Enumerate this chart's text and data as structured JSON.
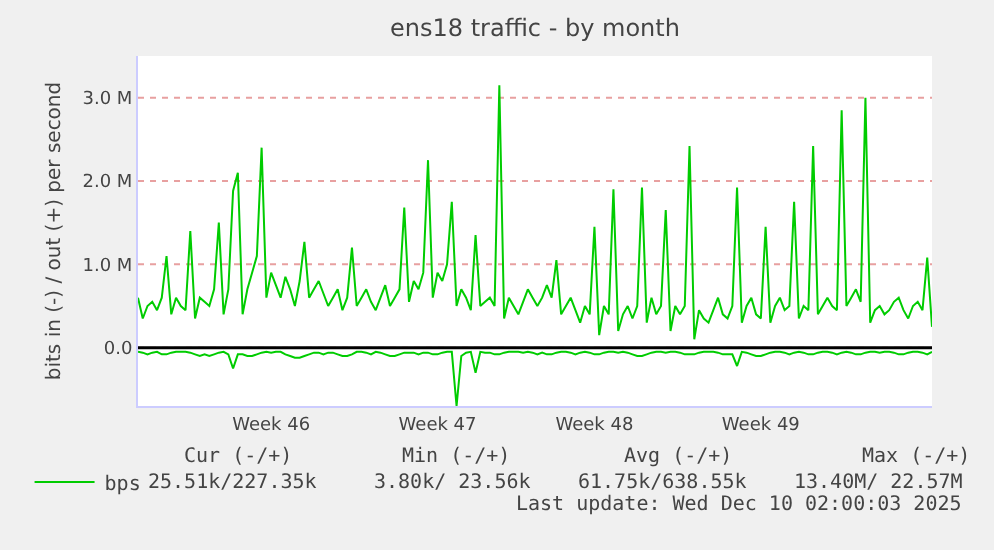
{
  "chart_data": {
    "type": "line",
    "title": "ens18 traffic - by month",
    "ylabel": "bits in (-) / out (+) per second",
    "categories": [
      null,
      null,
      null,
      null,
      null,
      null,
      null,
      null,
      null,
      null,
      null,
      null,
      null,
      null,
      null,
      null,
      null,
      null,
      null,
      null,
      null,
      null,
      null,
      null,
      null,
      null,
      null,
      null,
      "Week 46",
      null,
      null,
      null,
      null,
      null,
      null,
      null,
      null,
      null,
      null,
      null,
      null,
      null,
      null,
      null,
      null,
      null,
      null,
      null,
      null,
      null,
      null,
      null,
      null,
      null,
      null,
      null,
      null,
      null,
      null,
      null,
      null,
      null,
      null,
      "Week 47",
      null,
      null,
      null,
      null,
      null,
      null,
      null,
      null,
      null,
      null,
      null,
      null,
      null,
      null,
      null,
      null,
      null,
      null,
      null,
      null,
      null,
      null,
      null,
      null,
      null,
      null,
      null,
      null,
      null,
      null,
      null,
      null,
      "Week 48",
      null,
      null,
      null,
      null,
      null,
      null,
      null,
      null,
      null,
      null,
      null,
      null,
      null,
      null,
      null,
      null,
      null,
      null,
      null,
      null,
      null,
      null,
      null,
      null,
      null,
      null,
      null,
      null,
      null,
      null,
      null,
      null,
      null,
      null,
      "Week 49",
      null,
      null,
      null,
      null,
      null,
      null,
      null,
      null,
      null,
      null,
      null,
      null,
      null,
      null,
      null,
      null,
      null,
      null,
      null,
      null,
      null,
      null,
      null,
      null,
      null,
      null,
      null,
      null,
      null,
      null,
      null,
      null,
      null,
      null,
      null,
      null
    ],
    "ylim": [
      -0.7,
      3.5
    ],
    "yticks": [
      {
        "value": 0,
        "label": "0.0"
      },
      {
        "value": 1,
        "label": "1.0 M"
      },
      {
        "value": 2,
        "label": "2.0 M"
      },
      {
        "value": 3,
        "label": "3.0 M"
      }
    ],
    "grid": "y",
    "legend": "bottom left",
    "marker": "none",
    "line_style": "solid",
    "ref_lines": [
      {
        "axis": "y",
        "value": 0,
        "color": "#000000"
      }
    ],
    "series": [
      {
        "name": "bps",
        "color": "#00cc00",
        "values": [
          0.6,
          0.35,
          0.5,
          0.55,
          0.45,
          0.6,
          1.1,
          0.4,
          0.6,
          0.5,
          0.45,
          1.4,
          0.35,
          0.6,
          0.55,
          0.5,
          0.7,
          1.5,
          0.4,
          0.7,
          1.88,
          2.1,
          0.4,
          0.7,
          0.9,
          1.1,
          2.4,
          0.6,
          0.9,
          0.75,
          0.6,
          0.85,
          0.7,
          0.5,
          0.8,
          1.27,
          0.6,
          0.7,
          0.8,
          0.65,
          0.5,
          0.6,
          0.7,
          0.45,
          0.6,
          1.2,
          0.5,
          0.6,
          0.7,
          0.55,
          0.45,
          0.6,
          0.75,
          0.5,
          0.6,
          0.7,
          1.68,
          0.55,
          0.8,
          0.7,
          0.9,
          2.25,
          0.6,
          0.9,
          0.8,
          1.0,
          1.75,
          0.5,
          0.7,
          0.6,
          0.45,
          1.35,
          0.5,
          0.55,
          0.6,
          0.5,
          3.15,
          0.35,
          0.6,
          0.5,
          0.4,
          0.55,
          0.7,
          0.6,
          0.5,
          0.6,
          0.75,
          0.6,
          1.05,
          0.4,
          0.5,
          0.6,
          0.45,
          0.3,
          0.5,
          0.4,
          1.45,
          0.15,
          0.5,
          0.4,
          1.9,
          0.2,
          0.4,
          0.5,
          0.35,
          0.5,
          1.92,
          0.3,
          0.6,
          0.4,
          0.5,
          1.65,
          0.2,
          0.5,
          0.4,
          0.5,
          2.42,
          0.1,
          0.45,
          0.35,
          0.3,
          0.45,
          0.6,
          0.4,
          0.35,
          0.5,
          1.92,
          0.3,
          0.5,
          0.6,
          0.4,
          0.35,
          1.45,
          0.3,
          0.5,
          0.6,
          0.45,
          0.5,
          1.75,
          0.35,
          0.5,
          0.45,
          2.42,
          0.4,
          0.5,
          0.6,
          0.5,
          0.45,
          2.85,
          0.5,
          0.6,
          0.7,
          0.55,
          3.0,
          0.3,
          0.45,
          0.5,
          0.4,
          0.45,
          0.55,
          0.6,
          0.45,
          0.35,
          0.5,
          0.55,
          0.45,
          1.08,
          0.25
        ]
      },
      {
        "color": "#00cc00",
        "values": [
          -0.05,
          -0.06,
          -0.08,
          -0.06,
          -0.05,
          -0.08,
          -0.08,
          -0.06,
          -0.05,
          -0.05,
          -0.05,
          -0.06,
          -0.08,
          -0.1,
          -0.08,
          -0.1,
          -0.08,
          -0.06,
          -0.05,
          -0.08,
          -0.25,
          -0.08,
          -0.08,
          -0.1,
          -0.1,
          -0.08,
          -0.06,
          -0.05,
          -0.06,
          -0.05,
          -0.05,
          -0.08,
          -0.1,
          -0.12,
          -0.12,
          -0.1,
          -0.08,
          -0.06,
          -0.06,
          -0.08,
          -0.06,
          -0.06,
          -0.08,
          -0.1,
          -0.1,
          -0.08,
          -0.05,
          -0.05,
          -0.06,
          -0.08,
          -0.05,
          -0.06,
          -0.08,
          -0.1,
          -0.1,
          -0.08,
          -0.06,
          -0.06,
          -0.06,
          -0.08,
          -0.06,
          -0.06,
          -0.08,
          -0.08,
          -0.06,
          -0.05,
          -0.05,
          -0.7,
          -0.1,
          -0.06,
          -0.05,
          -0.3,
          -0.05,
          -0.06,
          -0.06,
          -0.08,
          -0.08,
          -0.06,
          -0.05,
          -0.05,
          -0.05,
          -0.06,
          -0.05,
          -0.06,
          -0.08,
          -0.06,
          -0.08,
          -0.08,
          -0.06,
          -0.05,
          -0.05,
          -0.06,
          -0.08,
          -0.06,
          -0.05,
          -0.06,
          -0.08,
          -0.08,
          -0.06,
          -0.05,
          -0.05,
          -0.06,
          -0.05,
          -0.06,
          -0.08,
          -0.1,
          -0.1,
          -0.08,
          -0.06,
          -0.05,
          -0.05,
          -0.06,
          -0.05,
          -0.05,
          -0.06,
          -0.08,
          -0.08,
          -0.08,
          -0.06,
          -0.05,
          -0.05,
          -0.05,
          -0.06,
          -0.08,
          -0.08,
          -0.08,
          -0.22,
          -0.05,
          -0.06,
          -0.08,
          -0.1,
          -0.1,
          -0.08,
          -0.06,
          -0.05,
          -0.05,
          -0.06,
          -0.08,
          -0.06,
          -0.05,
          -0.06,
          -0.08,
          -0.08,
          -0.06,
          -0.05,
          -0.05,
          -0.06,
          -0.08,
          -0.06,
          -0.05,
          -0.06,
          -0.08,
          -0.08,
          -0.06,
          -0.05,
          -0.05,
          -0.06,
          -0.05,
          -0.05,
          -0.06,
          -0.08,
          -0.08,
          -0.06,
          -0.05,
          -0.05,
          -0.06,
          -0.08,
          -0.05
        ]
      }
    ],
    "annotations": [
      "Cur (-/+)",
      "Min (-/+)",
      "Avg (-/+)",
      "Max (-/+)",
      "25.51k/227.35k",
      "3.80k/ 23.56k",
      "61.75k/638.55k",
      "13.40M/ 22.57M",
      "Last update: Wed Dec 10 02:00:03 2025"
    ]
  }
}
